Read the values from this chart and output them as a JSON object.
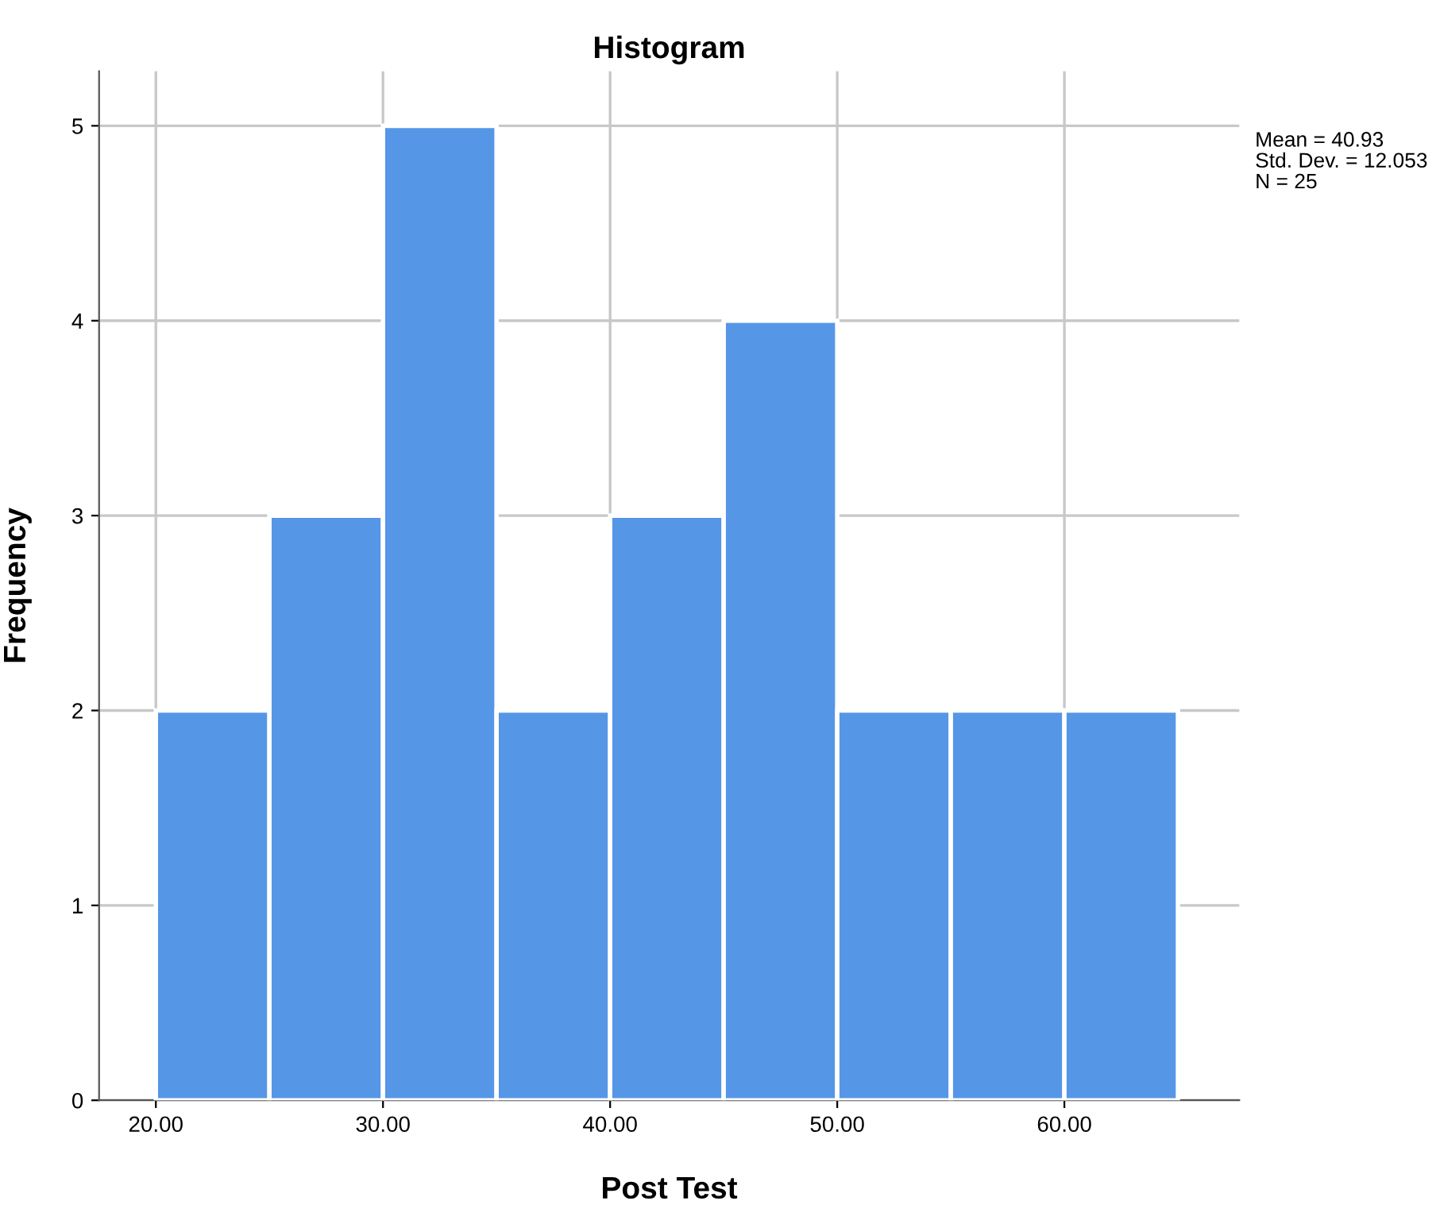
{
  "chart_data": {
    "type": "histogram",
    "title": "Histogram",
    "xlabel": "Post Test",
    "ylabel": "Frequency",
    "bins": [
      20,
      25,
      30,
      35,
      40,
      45,
      50,
      55,
      60,
      65
    ],
    "values": [
      2,
      3,
      5,
      2,
      3,
      4,
      2,
      2,
      2
    ],
    "color": "#5596e6",
    "xlim": [
      17.5,
      67.7
    ],
    "ylim": [
      0,
      5.28
    ],
    "xticks": [
      {
        "value": 20,
        "label": "20.00"
      },
      {
        "value": 30,
        "label": "30.00"
      },
      {
        "value": 40,
        "label": "40.00"
      },
      {
        "value": 50,
        "label": "50.00"
      },
      {
        "value": 60,
        "label": "60.00"
      }
    ],
    "yticks": [
      0,
      1,
      2,
      3,
      4,
      5
    ],
    "grid": true,
    "legend": false,
    "annotations": [
      "Mean = 40.93",
      "Std. Dev. = 12.053",
      "N = 25"
    ]
  }
}
